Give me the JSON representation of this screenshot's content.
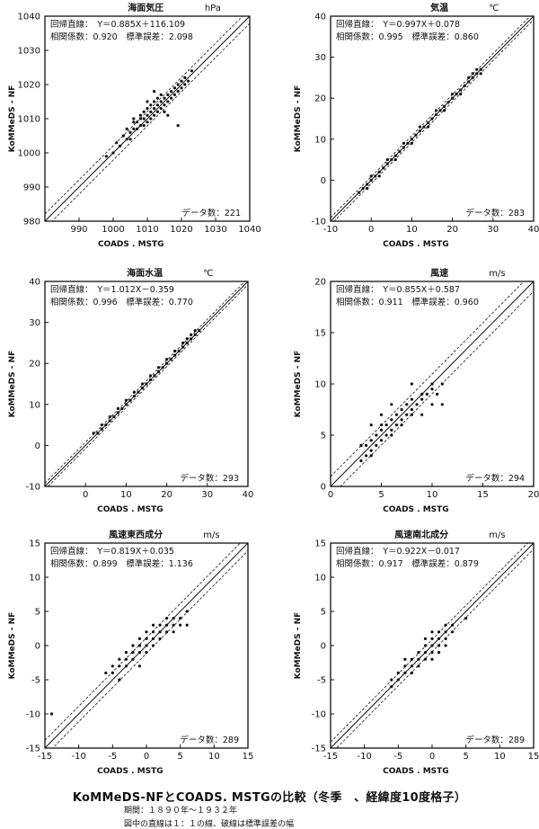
{
  "caption": {
    "title": "KoMMeDS-NFとCOADS. MSTGの比較（冬季　、経緯度10度格子）",
    "period": "期間：１８９０年～１９３２年",
    "note": "図中の直線は１：１の線、破線は標準誤差の幅"
  },
  "chart_data": [
    {
      "type": "scatter",
      "title": "海面気圧",
      "unit": "hPa",
      "xlabel": "COADS . MSTG",
      "ylabel": "KoMMeDS - NF",
      "xlim": [
        980,
        1040
      ],
      "ylim": [
        980,
        1040
      ],
      "xticks": [
        990,
        1000,
        1010,
        1020,
        1030,
        1040
      ],
      "yticks": [
        980,
        990,
        1000,
        1010,
        1020,
        1030,
        1040
      ],
      "regression_text": "回帰直線：　Y＝0.885X＋116.109",
      "stats_text": "相関係数：0.920　標準誤差：2.098",
      "count_text": "データ数：221",
      "slope": 0.885,
      "intercept": 116.109,
      "r": 0.92,
      "se": 2.098,
      "n": 221,
      "points": [
        [
          998,
          999
        ],
        [
          1000,
          1000
        ],
        [
          1001,
          1003
        ],
        [
          1002,
          1002
        ],
        [
          1003,
          1005
        ],
        [
          1004,
          1004
        ],
        [
          1005,
          1006
        ],
        [
          1005,
          1004
        ],
        [
          1006,
          1007
        ],
        [
          1006,
          1009
        ],
        [
          1007,
          1007
        ],
        [
          1007,
          1009
        ],
        [
          1008,
          1008
        ],
        [
          1008,
          1010
        ],
        [
          1008,
          1011
        ],
        [
          1009,
          1010
        ],
        [
          1009,
          1012
        ],
        [
          1009,
          1008
        ],
        [
          1010,
          1011
        ],
        [
          1010,
          1013
        ],
        [
          1010,
          1009
        ],
        [
          1011,
          1012
        ],
        [
          1011,
          1014
        ],
        [
          1011,
          1010
        ],
        [
          1012,
          1013
        ],
        [
          1012,
          1015
        ],
        [
          1012,
          1011
        ],
        [
          1013,
          1014
        ],
        [
          1013,
          1012
        ],
        [
          1013,
          1016
        ],
        [
          1014,
          1015
        ],
        [
          1014,
          1013
        ],
        [
          1014,
          1017
        ],
        [
          1015,
          1014
        ],
        [
          1015,
          1016
        ],
        [
          1015,
          1012
        ],
        [
          1016,
          1015
        ],
        [
          1016,
          1017
        ],
        [
          1017,
          1016
        ],
        [
          1017,
          1018
        ],
        [
          1018,
          1017
        ],
        [
          1018,
          1019
        ],
        [
          1019,
          1018
        ],
        [
          1019,
          1020
        ],
        [
          1020,
          1019
        ],
        [
          1020,
          1021
        ],
        [
          1021,
          1020
        ],
        [
          1021,
          1022
        ],
        [
          1022,
          1021
        ],
        [
          1023,
          1024
        ],
        [
          1019,
          1008
        ],
        [
          1010,
          1015
        ],
        [
          1012,
          1018
        ],
        [
          1016,
          1011
        ],
        [
          1006,
          1010
        ],
        [
          1004,
          1007
        ]
      ]
    },
    {
      "type": "scatter",
      "title": "気温",
      "unit": "℃",
      "xlabel": "COADS . MSTG",
      "ylabel": "KoMMeDS - NF",
      "xlim": [
        -10,
        40
      ],
      "ylim": [
        -10,
        40
      ],
      "xticks": [
        -10,
        0,
        10,
        20,
        30,
        40
      ],
      "yticks": [
        -10,
        0,
        10,
        20,
        30,
        40
      ],
      "regression_text": "回帰直線：　Y＝0.997X＋0.078",
      "stats_text": "相関係数：0.995　標準誤差：0.860",
      "count_text": "データ数：283",
      "slope": 0.997,
      "intercept": 0.078,
      "r": 0.995,
      "se": 0.86,
      "n": 283,
      "points": [
        [
          -3,
          -3
        ],
        [
          -2,
          -2
        ],
        [
          -1,
          -1
        ],
        [
          0,
          0
        ],
        [
          1,
          1
        ],
        [
          2,
          2
        ],
        [
          3,
          3
        ],
        [
          4,
          4
        ],
        [
          5,
          5
        ],
        [
          6,
          6
        ],
        [
          7,
          7
        ],
        [
          8,
          8
        ],
        [
          9,
          9
        ],
        [
          10,
          10
        ],
        [
          11,
          11
        ],
        [
          12,
          12
        ],
        [
          13,
          13
        ],
        [
          14,
          14
        ],
        [
          15,
          15
        ],
        [
          16,
          16
        ],
        [
          17,
          17
        ],
        [
          18,
          18
        ],
        [
          19,
          19
        ],
        [
          20,
          20
        ],
        [
          21,
          21
        ],
        [
          22,
          22
        ],
        [
          23,
          23
        ],
        [
          24,
          24
        ],
        [
          25,
          25
        ],
        [
          26,
          26
        ],
        [
          27,
          27
        ],
        [
          27,
          26
        ],
        [
          26,
          27
        ],
        [
          25,
          26
        ],
        [
          24,
          25
        ],
        [
          22,
          21
        ],
        [
          20,
          21
        ],
        [
          18,
          17
        ],
        [
          16,
          17
        ],
        [
          14,
          13
        ],
        [
          12,
          13
        ],
        [
          10,
          9
        ],
        [
          8,
          9
        ],
        [
          6,
          5
        ],
        [
          4,
          5
        ],
        [
          2,
          1
        ],
        [
          0,
          1
        ],
        [
          -1,
          -2
        ]
      ]
    },
    {
      "type": "scatter",
      "title": "海面水温",
      "unit": "℃",
      "xlabel": "COADS . MSTG",
      "ylabel": "KoMMeDS - NF",
      "xlim": [
        -10,
        40
      ],
      "ylim": [
        -10,
        40
      ],
      "xticks": [
        0,
        10,
        20,
        30,
        40
      ],
      "yticks": [
        -10,
        0,
        10,
        20,
        30,
        40
      ],
      "regression_text": "回帰直線：　Y＝1.012X－0.359",
      "stats_text": "相関係数：0.996　標準誤差：0.770",
      "count_text": "データ数：293",
      "slope": 1.012,
      "intercept": -0.359,
      "r": 0.996,
      "se": 0.77,
      "n": 293,
      "points": [
        [
          2,
          3
        ],
        [
          3,
          3
        ],
        [
          4,
          4
        ],
        [
          5,
          5
        ],
        [
          6,
          6
        ],
        [
          7,
          7
        ],
        [
          8,
          8
        ],
        [
          9,
          9
        ],
        [
          10,
          10
        ],
        [
          11,
          11
        ],
        [
          12,
          12
        ],
        [
          13,
          13
        ],
        [
          14,
          14
        ],
        [
          15,
          15
        ],
        [
          16,
          16
        ],
        [
          17,
          17
        ],
        [
          18,
          18
        ],
        [
          19,
          19
        ],
        [
          20,
          20
        ],
        [
          21,
          21
        ],
        [
          22,
          22
        ],
        [
          23,
          23
        ],
        [
          24,
          24
        ],
        [
          25,
          25
        ],
        [
          26,
          26
        ],
        [
          27,
          27
        ],
        [
          28,
          28
        ],
        [
          27,
          28
        ],
        [
          26,
          27
        ],
        [
          25,
          26
        ],
        [
          24,
          25
        ],
        [
          22,
          23
        ],
        [
          20,
          21
        ],
        [
          18,
          19
        ],
        [
          16,
          17
        ],
        [
          14,
          15
        ],
        [
          12,
          13
        ],
        [
          10,
          11
        ],
        [
          8,
          9
        ],
        [
          6,
          7
        ],
        [
          4,
          5
        ]
      ]
    },
    {
      "type": "scatter",
      "title": "風速",
      "unit": "m/s",
      "xlabel": "COADS . MSTG",
      "ylabel": "KoMMeDS - NF",
      "xlim": [
        0,
        20
      ],
      "ylim": [
        0,
        20
      ],
      "xticks": [
        0,
        5,
        10,
        15,
        20
      ],
      "yticks": [
        0,
        5,
        10,
        15,
        20
      ],
      "regression_text": "回帰直線：　Y＝0.855X＋0.587",
      "stats_text": "相関係数：0.911　標準誤差：0.960",
      "count_text": "データ数：294",
      "slope": 0.855,
      "intercept": 0.587,
      "r": 0.911,
      "se": 0.96,
      "n": 294,
      "points": [
        [
          3,
          2.5
        ],
        [
          3.5,
          3
        ],
        [
          3.5,
          4
        ],
        [
          4,
          3.5
        ],
        [
          4,
          4.5
        ],
        [
          4.5,
          4
        ],
        [
          4.5,
          5
        ],
        [
          5,
          4.5
        ],
        [
          5,
          5.5
        ],
        [
          5,
          6
        ],
        [
          5.5,
          5
        ],
        [
          5.5,
          6
        ],
        [
          6,
          5.5
        ],
        [
          6,
          6.5
        ],
        [
          6,
          5
        ],
        [
          6.5,
          6
        ],
        [
          6.5,
          7
        ],
        [
          7,
          6.5
        ],
        [
          7,
          7.5
        ],
        [
          7,
          6
        ],
        [
          7.5,
          7
        ],
        [
          7.5,
          8
        ],
        [
          8,
          7.5
        ],
        [
          8,
          8.5
        ],
        [
          8,
          7
        ],
        [
          8.5,
          8
        ],
        [
          9,
          8.5
        ],
        [
          9,
          9
        ],
        [
          9.5,
          9
        ],
        [
          10,
          9.5
        ],
        [
          10,
          10
        ],
        [
          10.5,
          9
        ],
        [
          11,
          10
        ],
        [
          4,
          6
        ],
        [
          5,
          7
        ],
        [
          6,
          8
        ],
        [
          9,
          7
        ],
        [
          10,
          8
        ],
        [
          3,
          4
        ],
        [
          4,
          3
        ],
        [
          11,
          8
        ],
        [
          8,
          10
        ]
      ]
    },
    {
      "type": "scatter",
      "title": "風速東西成分",
      "unit": "m/s",
      "xlabel": "COADS . MSTG",
      "ylabel": "KoMMeDS - NF",
      "xlim": [
        -15,
        15
      ],
      "ylim": [
        -15,
        15
      ],
      "xticks": [
        -15,
        -10,
        -5,
        0,
        5,
        10,
        15
      ],
      "yticks": [
        -15,
        -10,
        -5,
        0,
        5,
        10,
        15
      ],
      "regression_text": "回帰直線：　Y＝0.819X＋0.035",
      "stats_text": "相関係数：0.899　標準誤差：1.136",
      "count_text": "データ数：289",
      "slope": 0.819,
      "intercept": 0.035,
      "r": 0.899,
      "se": 1.136,
      "n": 289,
      "points": [
        [
          -6,
          -4
        ],
        [
          -5,
          -4
        ],
        [
          -5,
          -3
        ],
        [
          -4,
          -3
        ],
        [
          -4,
          -2
        ],
        [
          -3,
          -3
        ],
        [
          -3,
          -2
        ],
        [
          -3,
          -1
        ],
        [
          -2,
          -2
        ],
        [
          -2,
          -1
        ],
        [
          -2,
          0
        ],
        [
          -1,
          -1
        ],
        [
          -1,
          0
        ],
        [
          -1,
          1
        ],
        [
          0,
          -1
        ],
        [
          0,
          0
        ],
        [
          0,
          1
        ],
        [
          0,
          2
        ],
        [
          1,
          0
        ],
        [
          1,
          1
        ],
        [
          1,
          2
        ],
        [
          2,
          1
        ],
        [
          2,
          2
        ],
        [
          2,
          3
        ],
        [
          3,
          2
        ],
        [
          3,
          3
        ],
        [
          3,
          4
        ],
        [
          4,
          3
        ],
        [
          4,
          4
        ],
        [
          5,
          4
        ],
        [
          5,
          3
        ],
        [
          6,
          5
        ],
        [
          6,
          3
        ],
        [
          -1,
          -3
        ],
        [
          1,
          3
        ],
        [
          -4,
          -5
        ],
        [
          4,
          2
        ],
        [
          -14,
          -10
        ]
      ]
    },
    {
      "type": "scatter",
      "title": "風速南北成分",
      "unit": "m/s",
      "xlabel": "COADS . MSTG",
      "ylabel": "KoMMeDS - NF",
      "xlim": [
        -15,
        15
      ],
      "ylim": [
        -15,
        15
      ],
      "xticks": [
        -15,
        -10,
        -5,
        0,
        5,
        10,
        15
      ],
      "yticks": [
        -15,
        -10,
        -5,
        0,
        5,
        10,
        15
      ],
      "regression_text": "回帰直線：　Y＝0.922X－0.017",
      "stats_text": "相関係数：0.917　標準誤差：0.879",
      "count_text": "データ数：289",
      "slope": 0.922,
      "intercept": -0.017,
      "r": 0.917,
      "se": 0.879,
      "n": 289,
      "points": [
        [
          -6,
          -5
        ],
        [
          -5,
          -5
        ],
        [
          -5,
          -4
        ],
        [
          -4,
          -4
        ],
        [
          -4,
          -3
        ],
        [
          -3,
          -3
        ],
        [
          -3,
          -2
        ],
        [
          -2,
          -2
        ],
        [
          -2,
          -1
        ],
        [
          -1,
          -1
        ],
        [
          -1,
          0
        ],
        [
          0,
          -1
        ],
        [
          0,
          0
        ],
        [
          0,
          1
        ],
        [
          1,
          0
        ],
        [
          1,
          1
        ],
        [
          1,
          2
        ],
        [
          2,
          1
        ],
        [
          2,
          2
        ],
        [
          3,
          2
        ],
        [
          3,
          3
        ],
        [
          -3,
          -4
        ],
        [
          -2,
          -3
        ],
        [
          -1,
          -2
        ],
        [
          0,
          -2
        ],
        [
          1,
          -1
        ],
        [
          2,
          0
        ],
        [
          -4,
          -2
        ],
        [
          -1,
          1
        ],
        [
          0,
          2
        ],
        [
          2,
          3
        ],
        [
          5,
          4
        ],
        [
          -6,
          -6
        ]
      ]
    }
  ]
}
